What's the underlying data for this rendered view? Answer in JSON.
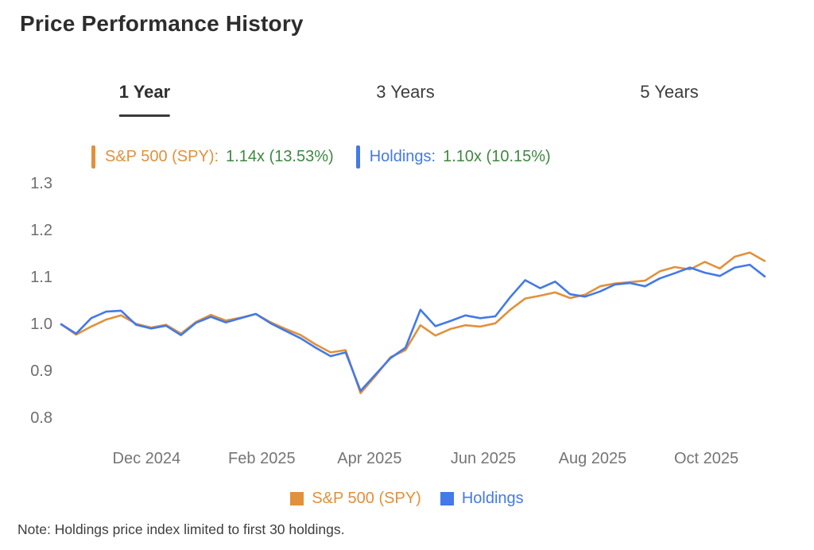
{
  "header": {
    "title": "Price Performance History"
  },
  "tabs": {
    "items": [
      {
        "label": "1 Year",
        "active": true
      },
      {
        "label": "3 Years",
        "active": false
      },
      {
        "label": "5 Years",
        "active": false
      }
    ]
  },
  "summary_legend": {
    "spy": {
      "label": "S&P 500 (SPY):",
      "value": "1.14x (13.53%)"
    },
    "holdings": {
      "label": "Holdings:",
      "value": "1.10x (10.15%)"
    }
  },
  "colors": {
    "spy_orange": "#E0913C",
    "holdings_blue": "#4379E8",
    "value_green": "#3E8840",
    "axis_gray": "#707070",
    "tab_underline": "#3A3A3A"
  },
  "note": "Note: Holdings price index limited to first 30 holdings.",
  "chart_data": {
    "type": "line",
    "title": "Price Performance History",
    "xlabel": "",
    "ylabel": "",
    "ylim": [
      0.8,
      1.3
    ],
    "grid": false,
    "legend_position": "bottom-center",
    "x_unit": "weeks since start (Nov 2024 - Nov 2025)",
    "x_tick_labels": [
      "Dec 2024",
      "Feb 2025",
      "Apr 2025",
      "Jun 2025",
      "Aug 2025",
      "Oct 2025"
    ],
    "x_tick_positions": [
      5.7,
      13.4,
      20.6,
      28.2,
      35.5,
      43.1
    ],
    "y_ticks": [
      1.3,
      1.2,
      1.1,
      1.0,
      0.9,
      0.8
    ],
    "series": [
      {
        "name": "S&P 500 (SPY)",
        "color_key": "spy_orange",
        "final_multiple": "1.14x",
        "final_return_pct": 13.53,
        "values": [
          1.0,
          0.978,
          0.995,
          1.01,
          1.019,
          1.001,
          0.993,
          0.999,
          0.98,
          1.005,
          1.02,
          1.008,
          1.014,
          1.022,
          1.004,
          0.99,
          0.977,
          0.957,
          0.94,
          0.945,
          0.853,
          0.89,
          0.93,
          0.945,
          0.998,
          0.976,
          0.99,
          0.998,
          0.995,
          1.002,
          1.031,
          1.055,
          1.061,
          1.068,
          1.056,
          1.063,
          1.081,
          1.087,
          1.09,
          1.093,
          1.113,
          1.122,
          1.117,
          1.133,
          1.119,
          1.144,
          1.153,
          1.135
        ]
      },
      {
        "name": "Holdings",
        "color_key": "holdings_blue",
        "final_multiple": "1.10x",
        "final_return_pct": 10.15,
        "values": [
          1.0,
          0.98,
          1.013,
          1.027,
          1.029,
          0.999,
          0.991,
          0.997,
          0.977,
          1.003,
          1.016,
          1.004,
          1.013,
          1.022,
          1.002,
          0.986,
          0.97,
          0.95,
          0.932,
          0.94,
          0.858,
          0.893,
          0.928,
          0.95,
          1.031,
          0.996,
          1.007,
          1.019,
          1.013,
          1.017,
          1.058,
          1.094,
          1.077,
          1.091,
          1.064,
          1.059,
          1.07,
          1.085,
          1.088,
          1.081,
          1.098,
          1.109,
          1.121,
          1.11,
          1.103,
          1.121,
          1.127,
          1.102
        ]
      }
    ]
  }
}
